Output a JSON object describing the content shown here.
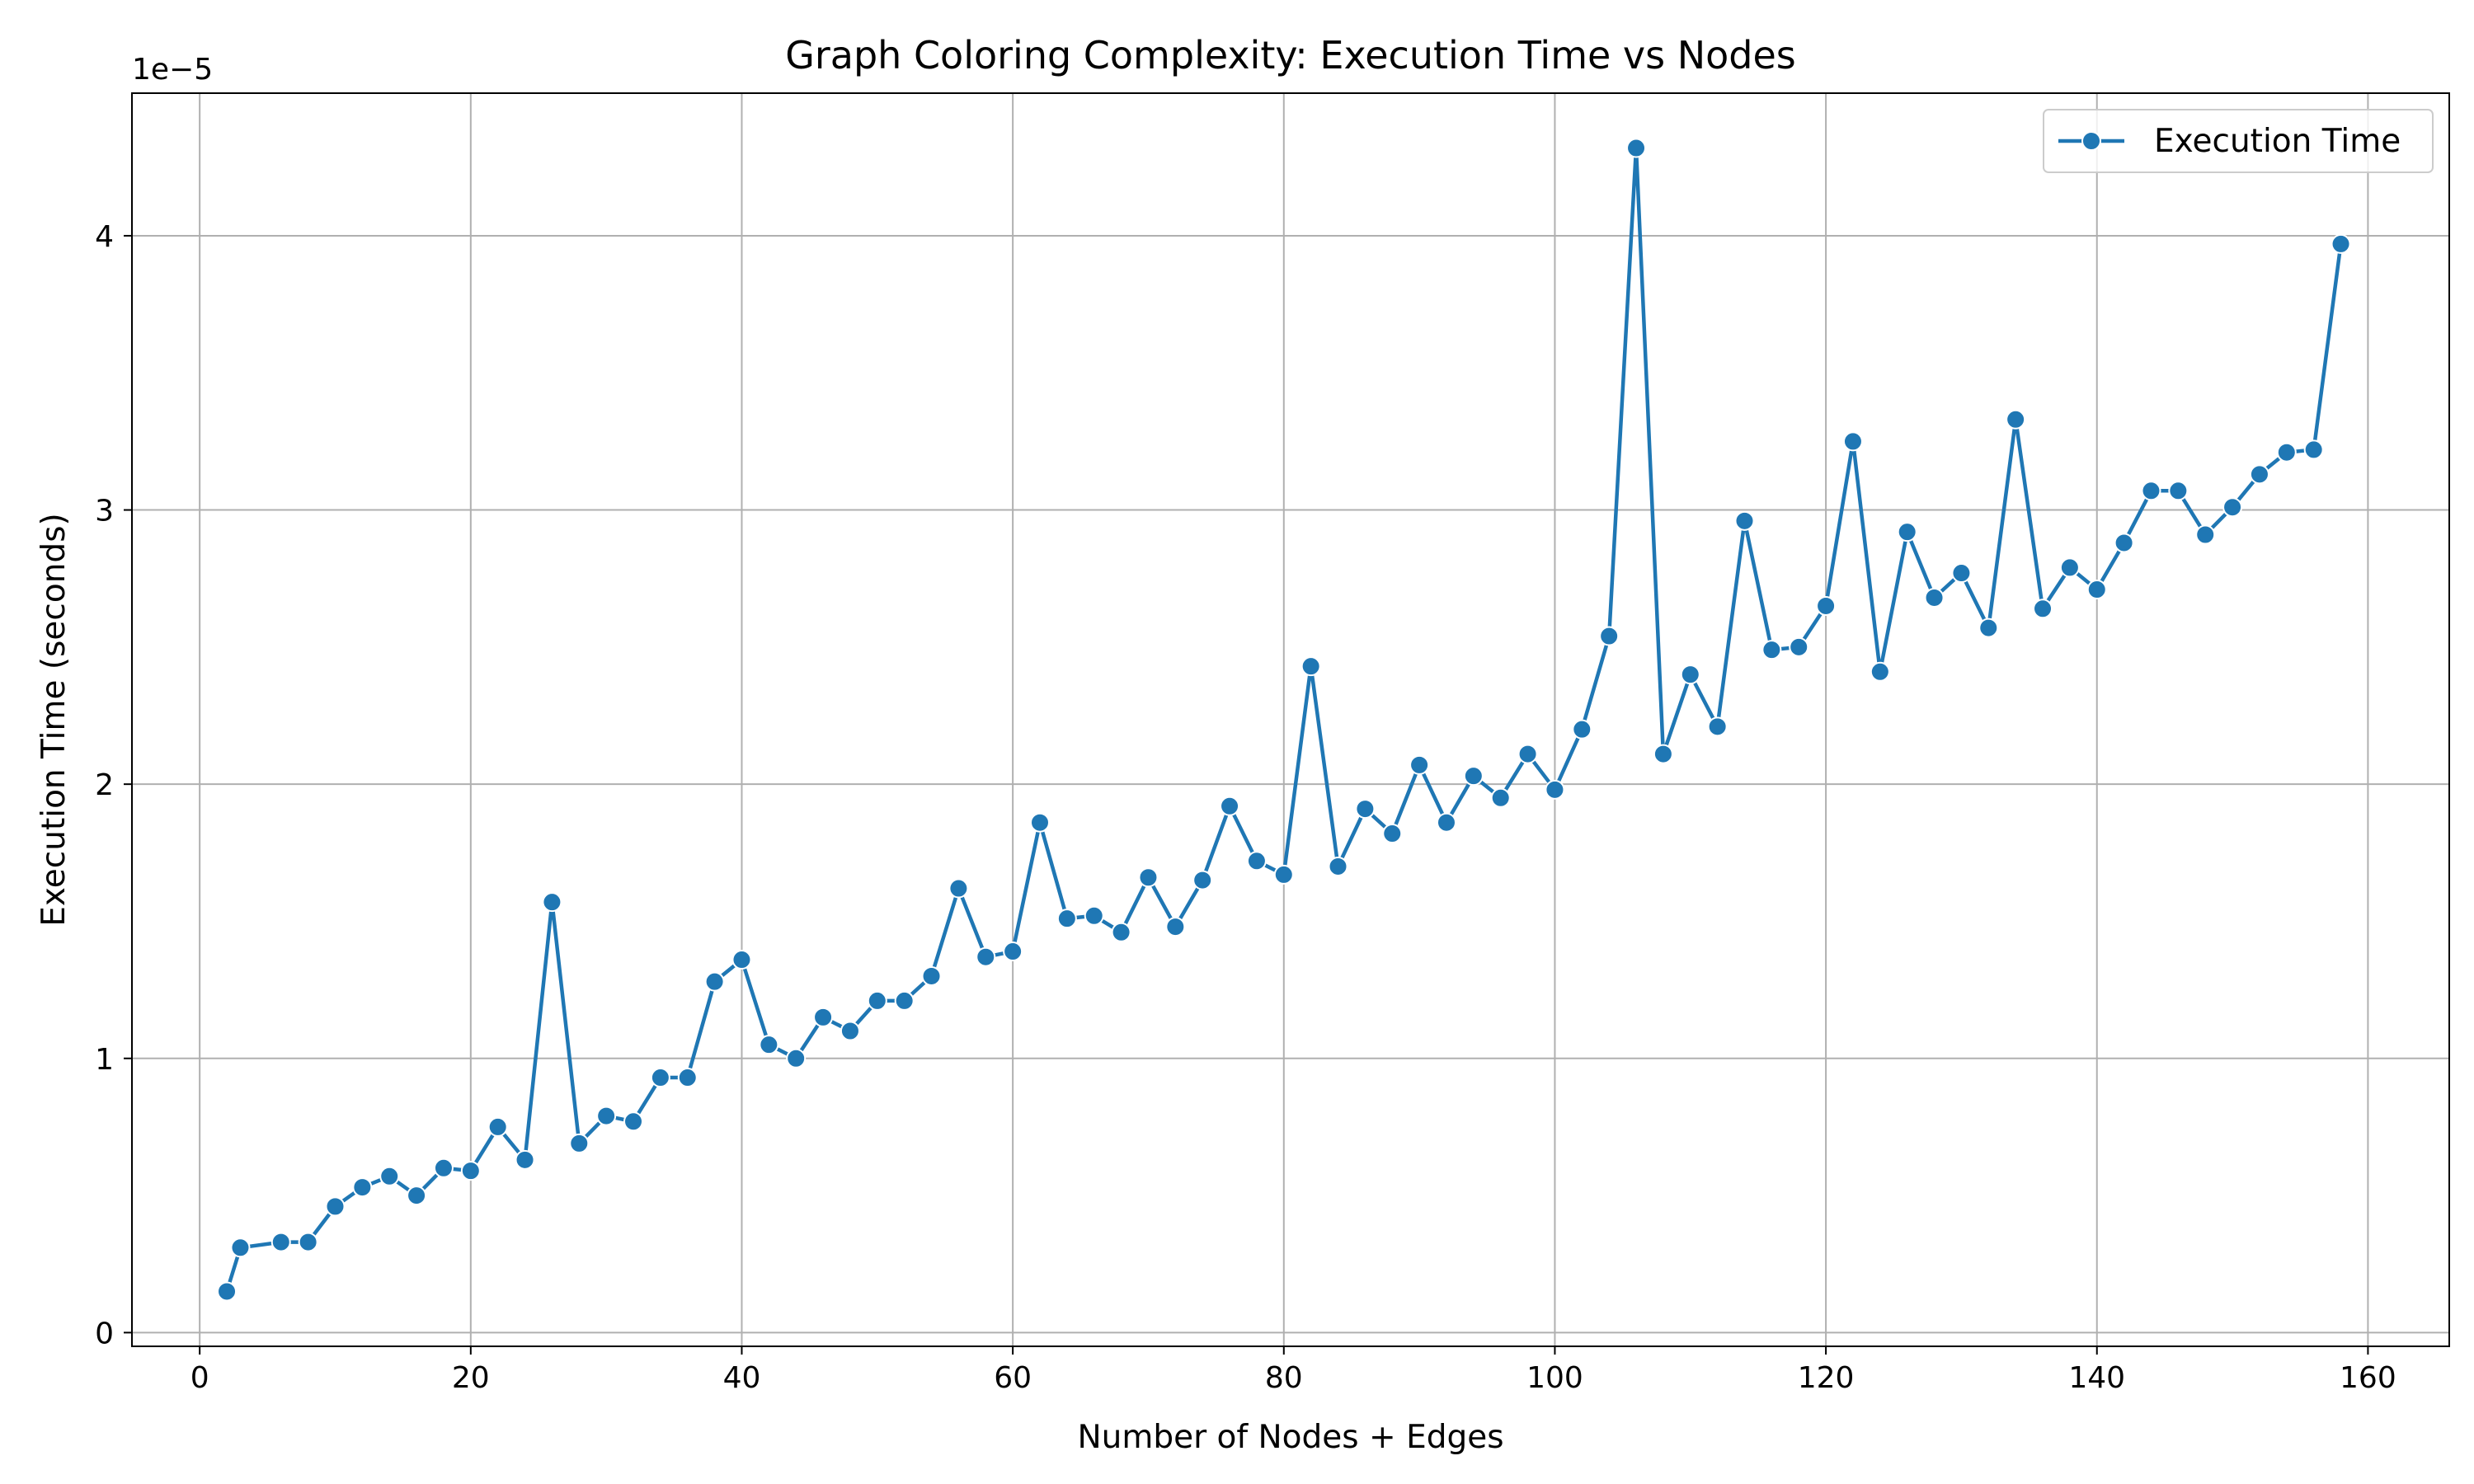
{
  "chart_data": {
    "type": "line",
    "title": "Graph Coloring Complexity: Execution Time vs Nodes",
    "xlabel": "Number of Nodes + Edges",
    "ylabel": "Execution Time (seconds)",
    "offset_text": "1e−5",
    "xlim": [
      -5,
      166
    ],
    "ylim": [
      -0.05,
      4.52
    ],
    "xticks": [
      0,
      20,
      40,
      60,
      80,
      100,
      120,
      140,
      160
    ],
    "xtick_labels": [
      "0",
      "20",
      "40",
      "60",
      "80",
      "100",
      "120",
      "140",
      "160"
    ],
    "yticks": [
      0,
      1,
      2,
      3,
      4
    ],
    "ytick_labels": [
      "0",
      "1",
      "2",
      "3",
      "4"
    ],
    "grid": true,
    "legend_position": "upper-right",
    "color": "#1f77b4",
    "series": [
      {
        "name": "Execution Time",
        "x": [
          2,
          3,
          6,
          8,
          10,
          12,
          14,
          16,
          18,
          20,
          22,
          24,
          26,
          28,
          30,
          32,
          34,
          36,
          38,
          40,
          42,
          44,
          46,
          48,
          50,
          52,
          54,
          56,
          58,
          60,
          62,
          64,
          66,
          68,
          70,
          72,
          74,
          76,
          78,
          80,
          82,
          84,
          86,
          88,
          90,
          92,
          94,
          96,
          98,
          100,
          102,
          104,
          106,
          108,
          110,
          112,
          114,
          116,
          118,
          120,
          122,
          124,
          126,
          128,
          130,
          132,
          134,
          136,
          138,
          140,
          142,
          144,
          146,
          148,
          150,
          152,
          154,
          156,
          158
        ],
        "y": [
          0.15,
          0.31,
          0.33,
          0.33,
          0.46,
          0.53,
          0.57,
          0.5,
          0.6,
          0.59,
          0.75,
          0.63,
          1.57,
          0.69,
          0.79,
          0.77,
          0.93,
          0.93,
          1.28,
          1.36,
          1.05,
          1.0,
          1.15,
          1.1,
          1.21,
          1.21,
          1.3,
          1.62,
          1.37,
          1.39,
          1.86,
          1.51,
          1.52,
          1.46,
          1.66,
          1.48,
          1.65,
          1.92,
          1.72,
          1.67,
          2.43,
          1.7,
          1.91,
          1.82,
          2.07,
          1.86,
          2.03,
          1.95,
          2.11,
          1.98,
          2.2,
          2.54,
          4.32,
          2.11,
          2.4,
          2.21,
          2.96,
          2.49,
          2.5,
          2.65,
          3.25,
          2.41,
          2.92,
          2.68,
          2.77,
          2.57,
          3.33,
          2.64,
          2.79,
          2.71,
          2.88,
          3.07,
          3.07,
          2.91,
          3.01,
          3.13,
          3.21,
          3.22,
          3.97
        ]
      }
    ]
  }
}
